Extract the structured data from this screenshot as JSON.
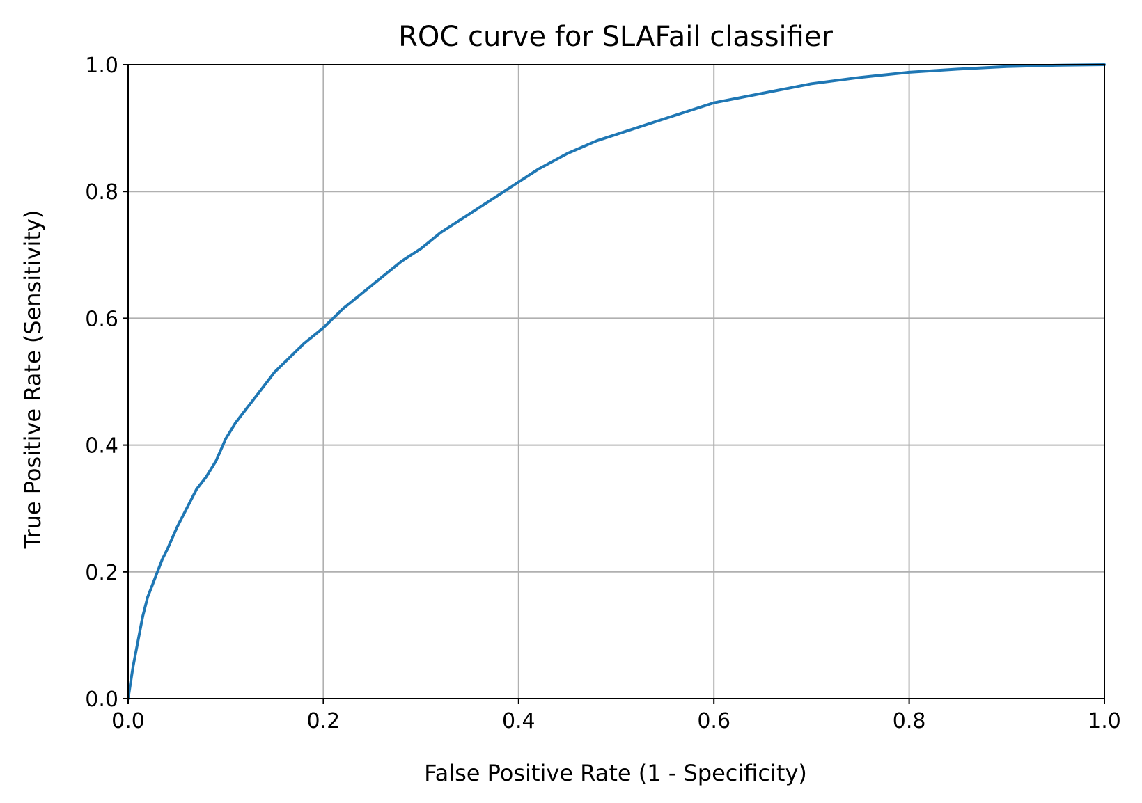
{
  "chart_data": {
    "type": "line",
    "title": "ROC curve for SLAFail classifier",
    "xlabel": "False Positive Rate (1 - Specificity)",
    "ylabel": "True Positive Rate (Sensitivity)",
    "xlim": [
      0.0,
      1.0
    ],
    "ylim": [
      0.0,
      1.0
    ],
    "x_ticks": [
      "0.0",
      "0.2",
      "0.4",
      "0.6",
      "0.8",
      "1.0"
    ],
    "y_ticks": [
      "0.0",
      "0.2",
      "0.4",
      "0.6",
      "0.8",
      "1.0"
    ],
    "grid": true,
    "legend": false,
    "series": [
      {
        "color": "#1f77b4",
        "x": [
          0.0,
          0.002,
          0.005,
          0.01,
          0.015,
          0.02,
          0.025,
          0.03,
          0.035,
          0.04,
          0.05,
          0.06,
          0.07,
          0.08,
          0.09,
          0.1,
          0.11,
          0.12,
          0.13,
          0.14,
          0.15,
          0.16,
          0.18,
          0.2,
          0.22,
          0.24,
          0.26,
          0.28,
          0.3,
          0.32,
          0.35,
          0.38,
          0.4,
          0.42,
          0.45,
          0.48,
          0.5,
          0.55,
          0.6,
          0.65,
          0.7,
          0.75,
          0.8,
          0.85,
          0.9,
          0.95,
          1.0
        ],
        "y": [
          0.0,
          0.02,
          0.05,
          0.09,
          0.13,
          0.16,
          0.18,
          0.2,
          0.22,
          0.235,
          0.27,
          0.3,
          0.33,
          0.35,
          0.375,
          0.41,
          0.435,
          0.455,
          0.475,
          0.495,
          0.515,
          0.53,
          0.56,
          0.585,
          0.615,
          0.64,
          0.665,
          0.69,
          0.71,
          0.735,
          0.765,
          0.795,
          0.815,
          0.835,
          0.86,
          0.88,
          0.89,
          0.915,
          0.94,
          0.955,
          0.97,
          0.98,
          0.988,
          0.993,
          0.997,
          0.999,
          1.0
        ]
      }
    ]
  }
}
